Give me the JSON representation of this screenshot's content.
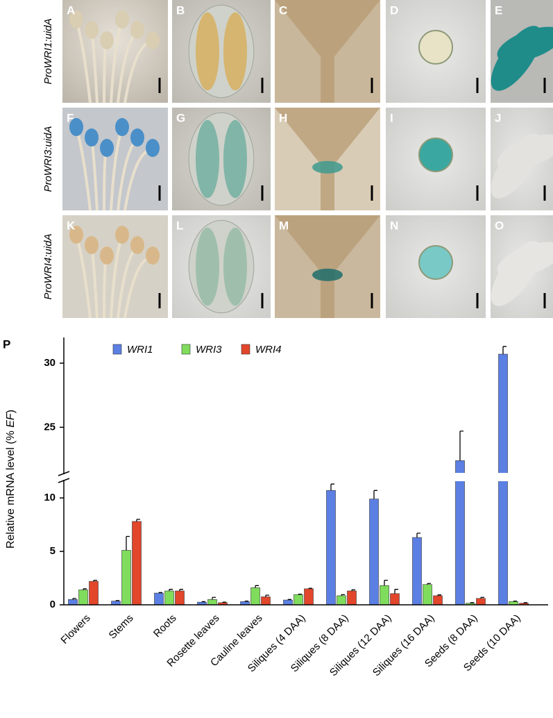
{
  "panels": {
    "row_labels": [
      "ProWRI1:uidA",
      "ProWRI3:uidA",
      "ProWRI4:uidA"
    ],
    "letters": [
      [
        "A",
        "B",
        "C",
        "D",
        "E"
      ],
      [
        "F",
        "G",
        "H",
        "I",
        "J"
      ],
      [
        "K",
        "L",
        "M",
        "N",
        "O"
      ]
    ]
  },
  "chart_data": {
    "type": "bar",
    "panel_label": "P",
    "y_label": [
      "Relative  mRNA level (% ",
      "EF",
      ")"
    ],
    "categories": [
      "Flowers",
      "Stems",
      "Roots",
      "Rosette leaves",
      "Cauline leaves",
      "Siliques (4 DAA)",
      "Siliques (8 DAA)",
      "Siliques (12 DAA)",
      "Siliques (16 DAA)",
      "Seeds (8 DAA)",
      "Seeds (10 DAA)"
    ],
    "series": [
      {
        "name": "WRI1",
        "color": "#5b7fe3",
        "values": [
          0.5,
          0.35,
          1.1,
          0.25,
          0.3,
          0.45,
          10.7,
          9.9,
          6.3,
          22.4,
          30.7
        ],
        "errors": [
          0.1,
          0.05,
          0.05,
          0.05,
          0.05,
          0.05,
          0.6,
          0.8,
          0.4,
          2.3,
          0.6
        ]
      },
      {
        "name": "WRI3",
        "color": "#7fdc5c",
        "values": [
          1.4,
          5.1,
          1.3,
          0.5,
          1.6,
          0.95,
          0.85,
          1.8,
          1.9,
          0.15,
          0.3
        ],
        "errors": [
          0.1,
          1.3,
          0.15,
          0.2,
          0.2,
          0.05,
          0.1,
          0.5,
          0.1,
          0.05,
          0.05
        ]
      },
      {
        "name": "WRI4",
        "color": "#e2462b",
        "values": [
          2.2,
          7.8,
          1.3,
          0.2,
          0.75,
          1.5,
          1.3,
          1.05,
          0.85,
          0.6,
          0.15
        ],
        "errors": [
          0.1,
          0.2,
          0.15,
          0.05,
          0.15,
          0.05,
          0.1,
          0.4,
          0.08,
          0.1,
          0.05
        ]
      }
    ],
    "ylim": [
      0,
      32
    ],
    "y_break": [
      11.5,
      21.5
    ],
    "yticks": [
      0,
      5,
      10,
      25,
      30
    ]
  }
}
